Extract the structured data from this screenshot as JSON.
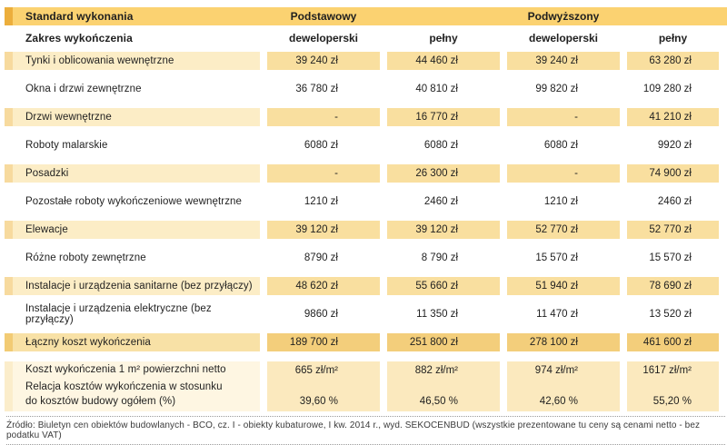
{
  "colors": {
    "header_gold": "#FBD271",
    "header_gold_stripe": "#ECAE3C",
    "row_cream_label": "#FCEDC6",
    "row_cream_cell": "#F9DF9F",
    "total_row_label": "#F8E1A6",
    "total_row_cell": "#F3CE7B",
    "summary_label": "#FEF6E2",
    "summary_cell": "#FBE9BE",
    "text": "#1F1F1F"
  },
  "chart_data": {
    "type": "table",
    "corner_top": "Standard wykonania",
    "corner_bottom": "Zakres wykończenia",
    "column_groups": [
      "Podstawowy",
      "Podwyższony"
    ],
    "columns": [
      "deweloperski",
      "pełny",
      "deweloperski",
      "pełny"
    ],
    "rows": [
      {
        "label": "Tynki i oblicowania wewnętrzne",
        "shade": "cream",
        "values": [
          "39 240 zł",
          "44 460 zł",
          "39 240 zł",
          "63 280 zł"
        ]
      },
      {
        "label": "Okna i drzwi zewnętrzne",
        "shade": "white",
        "values": [
          "36 780 zł",
          "40 810 zł",
          "99 820 zł",
          "109 280 zł"
        ]
      },
      {
        "label": "Drzwi wewnętrzne",
        "shade": "cream",
        "values": [
          "-",
          "16 770 zł",
          "-",
          "41 210 zł"
        ]
      },
      {
        "label": "Roboty malarskie",
        "shade": "white",
        "values": [
          "6080 zł",
          "6080 zł",
          "6080 zł",
          "9920 zł"
        ]
      },
      {
        "label": "Posadzki",
        "shade": "cream",
        "values": [
          "-",
          "26 300 zł",
          "-",
          "74 900 zł"
        ]
      },
      {
        "label": "Pozostałe roboty wykończeniowe wewnętrzne",
        "shade": "white",
        "values": [
          "1210 zł",
          "2460 zł",
          "1210 zł",
          "2460 zł"
        ]
      },
      {
        "label": "Elewacje",
        "shade": "cream",
        "values": [
          "39 120 zł",
          "39 120 zł",
          "52 770 zł",
          "52 770 zł"
        ]
      },
      {
        "label": "Różne roboty zewnętrzne",
        "shade": "white",
        "values": [
          "8790 zł",
          "8 790 zł",
          "15 570 zł",
          "15 570 zł"
        ]
      },
      {
        "label": "Instalacje i urządzenia sanitarne (bez przyłączy)",
        "shade": "cream",
        "values": [
          "48 620 zł",
          "55 660 zł",
          "51 940 zł",
          "78 690 zł"
        ]
      },
      {
        "label": "Instalacje i urządzenia elektryczne (bez przyłączy)",
        "shade": "white",
        "values": [
          "9860 zł",
          "11 350 zł",
          "11 470 zł",
          "13 520 zł"
        ]
      },
      {
        "label": "Łączny koszt wykończenia",
        "shade": "total",
        "values": [
          "189 700 zł",
          "251 800 zł",
          "278 100 zł",
          "461 600 zł"
        ]
      }
    ],
    "summary": {
      "line1": "Koszt wykończenia 1 m² powierzchni netto",
      "line2": "Relacja kosztów wykończenia w stosunku",
      "line3": "do kosztów budowy ogółem (%)",
      "cost_per_m2": [
        "665 zł/m²",
        "882 zł/m²",
        "974 zł/m²",
        "1617 zł/m²"
      ],
      "relation_percent": [
        "39,60 %",
        "46,50 %",
        "42,60 %",
        "55,20 %"
      ]
    }
  },
  "footer": {
    "source": "Źródło: Biuletyn cen obiektów budowlanych - BCO, cz. I - obiekty kubaturowe, I kw. 2014 r., wyd. SEKOCENBUD (wszystkie prezentowane tu ceny są cenami netto - bez podatku VAT)"
  }
}
